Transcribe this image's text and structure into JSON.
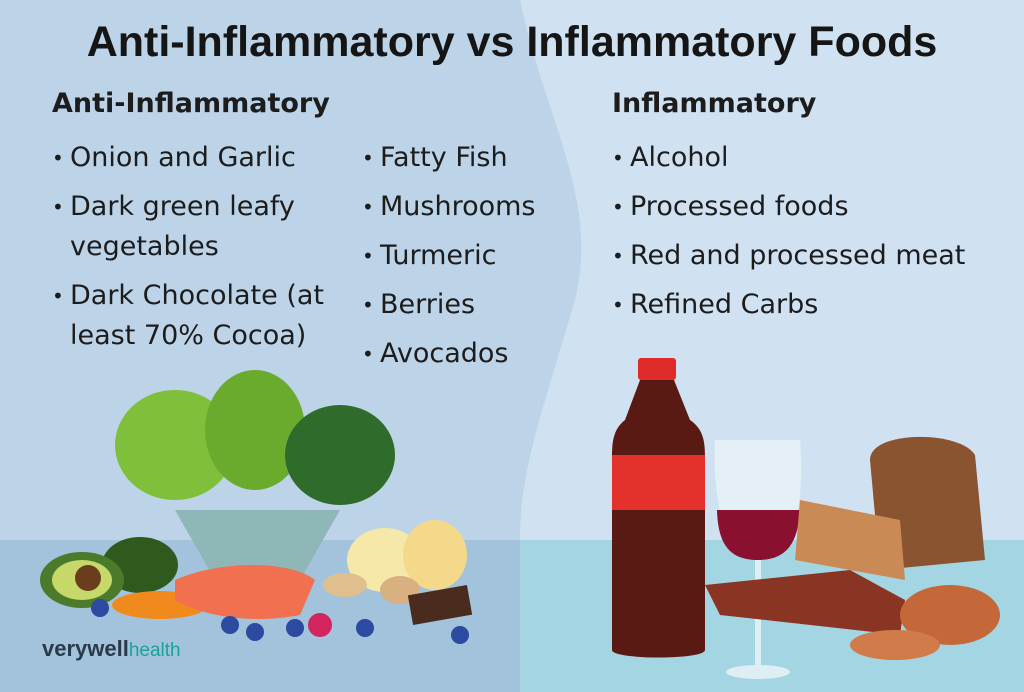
{
  "title": "Anti-Inflammatory vs Inflammatory Foods",
  "anti_inflammatory": {
    "heading": "Anti-Inflammatory",
    "columns": [
      [
        "Onion and Garlic",
        "Dark green leafy vegetables",
        "Dark Chocolate (at least 70% Cocoa)"
      ],
      [
        "Fatty Fish",
        "Mushrooms",
        "Turmeric",
        "Berries",
        "Avocados"
      ]
    ]
  },
  "inflammatory": {
    "heading": "Inflammatory",
    "items": [
      "Alcohol",
      "Processed foods",
      "Red and processed meat",
      "Refined Carbs"
    ]
  },
  "brand": {
    "name": "verywell",
    "suffix": "health"
  }
}
